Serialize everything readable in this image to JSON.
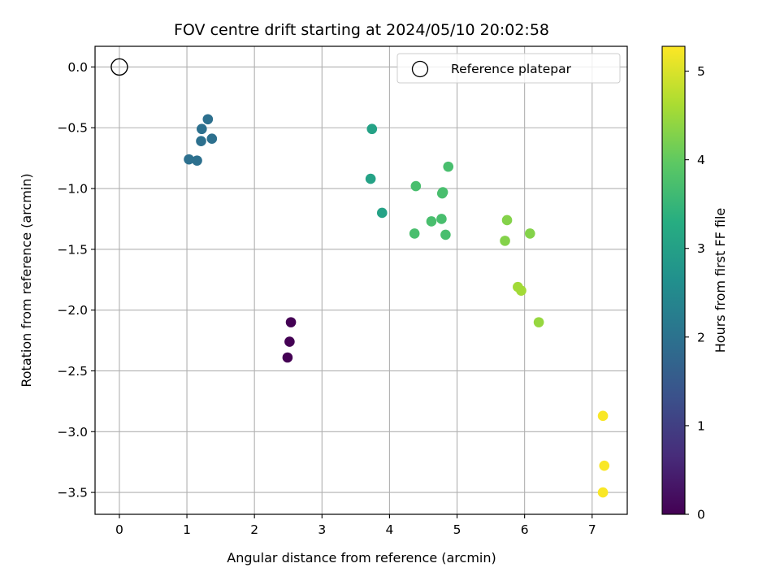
{
  "chart_data": {
    "type": "scatter",
    "title": "FOV centre drift starting at 2024/05/10 20:02:58",
    "xlabel": "Angular distance from reference (arcmin)",
    "ylabel": "Rotation from reference (arcmin)",
    "xlim": [
      -0.36,
      7.52
    ],
    "ylim": [
      -3.68,
      0.17
    ],
    "grid": true,
    "legend": {
      "placement": "top-right",
      "entries": [
        "Reference platepar"
      ]
    },
    "x_ticks": [
      0,
      1,
      2,
      3,
      4,
      5,
      6,
      7
    ],
    "y_ticks": [
      0.0,
      -0.5,
      -1.0,
      -1.5,
      -2.0,
      -2.5,
      -3.0,
      -3.5
    ],
    "x_tick_labels": [
      "0",
      "1",
      "2",
      "3",
      "4",
      "5",
      "6",
      "7"
    ],
    "y_tick_labels": [
      "0.0",
      "−0.5",
      "−1.0",
      "−1.5",
      "−2.0",
      "−2.5",
      "−3.0",
      "−3.5"
    ],
    "reference": {
      "name": "Reference platepar",
      "x": 0.0,
      "y": 0.0
    },
    "colorbar": {
      "label": "Hours from first FF file",
      "colormap": "viridis",
      "range": [
        0,
        5.28
      ],
      "ticks": [
        0,
        1,
        2,
        3,
        4,
        5
      ],
      "tick_labels": [
        "0",
        "1",
        "2",
        "3",
        "4",
        "5"
      ]
    },
    "points": [
      {
        "x": 2.54,
        "y": -2.1,
        "hours": 0.0
      },
      {
        "x": 2.52,
        "y": -2.26,
        "hours": 0.0
      },
      {
        "x": 2.49,
        "y": -2.39,
        "hours": 0.0
      },
      {
        "x": 1.31,
        "y": -0.43,
        "hours": 1.95
      },
      {
        "x": 1.22,
        "y": -0.51,
        "hours": 1.95
      },
      {
        "x": 1.21,
        "y": -0.61,
        "hours": 1.95
      },
      {
        "x": 1.37,
        "y": -0.59,
        "hours": 1.95
      },
      {
        "x": 1.03,
        "y": -0.76,
        "hours": 1.95
      },
      {
        "x": 1.15,
        "y": -0.77,
        "hours": 1.95
      },
      {
        "x": 3.74,
        "y": -0.51,
        "hours": 3.05
      },
      {
        "x": 3.72,
        "y": -0.92,
        "hours": 3.05
      },
      {
        "x": 3.89,
        "y": -1.2,
        "hours": 3.05
      },
      {
        "x": 4.87,
        "y": -0.82,
        "hours": 3.72
      },
      {
        "x": 4.39,
        "y": -0.98,
        "hours": 3.72
      },
      {
        "x": 4.79,
        "y": -1.03,
        "hours": 3.72
      },
      {
        "x": 4.78,
        "y": -1.04,
        "hours": 3.72
      },
      {
        "x": 4.62,
        "y": -1.27,
        "hours": 3.72
      },
      {
        "x": 4.77,
        "y": -1.25,
        "hours": 3.72
      },
      {
        "x": 4.37,
        "y": -1.37,
        "hours": 3.72
      },
      {
        "x": 4.83,
        "y": -1.38,
        "hours": 3.72
      },
      {
        "x": 5.74,
        "y": -1.26,
        "hours": 4.3
      },
      {
        "x": 6.08,
        "y": -1.37,
        "hours": 4.3
      },
      {
        "x": 5.71,
        "y": -1.43,
        "hours": 4.3
      },
      {
        "x": 5.9,
        "y": -1.81,
        "hours": 4.55
      },
      {
        "x": 5.95,
        "y": -1.84,
        "hours": 4.55
      },
      {
        "x": 6.21,
        "y": -2.1,
        "hours": 4.45
      },
      {
        "x": 7.16,
        "y": -2.87,
        "hours": 5.25
      },
      {
        "x": 7.18,
        "y": -3.28,
        "hours": 5.25
      },
      {
        "x": 7.16,
        "y": -3.5,
        "hours": 5.25
      }
    ]
  }
}
